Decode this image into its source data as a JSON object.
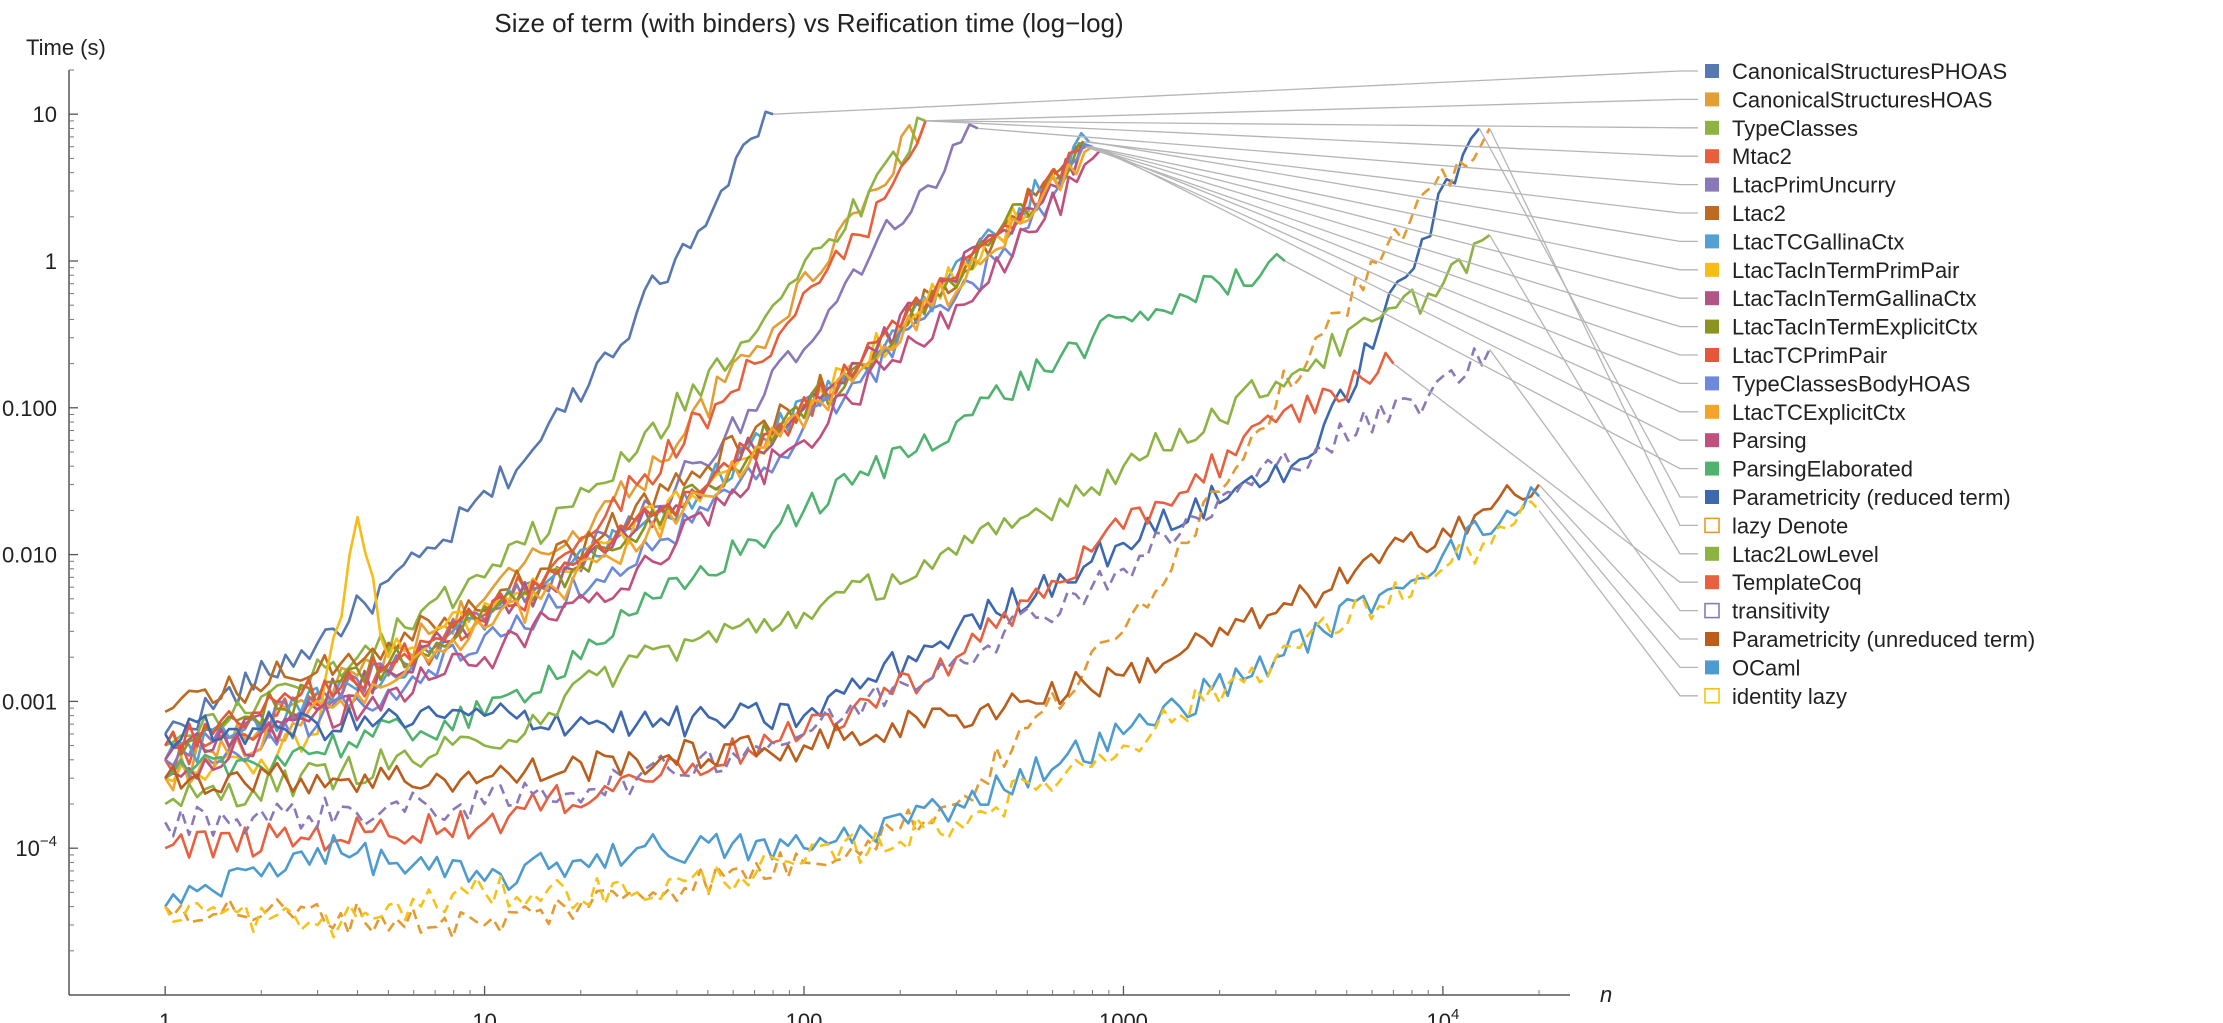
{
  "chart_data": {
    "type": "line",
    "title": "Size of term (with binders) vs Reification time (log−log)",
    "xlabel": "n",
    "ylabel": "Time (s)",
    "xscale": "log",
    "yscale": "log",
    "xlim": [
      0.5,
      25000
    ],
    "ylim": [
      1e-05,
      20
    ],
    "grid": false,
    "legend_position": "right",
    "x_ticks": [
      {
        "value": 1,
        "base": "1",
        "sup": ""
      },
      {
        "value": 10,
        "base": "10",
        "sup": ""
      },
      {
        "value": 100,
        "base": "100",
        "sup": ""
      },
      {
        "value": 1000,
        "base": "1000",
        "sup": ""
      },
      {
        "value": 10000,
        "base": "10",
        "sup": "4"
      }
    ],
    "y_ticks": [
      {
        "value": 0.0001,
        "base": "10",
        "sup": "−4"
      },
      {
        "value": 0.001,
        "base": "0.001",
        "sup": ""
      },
      {
        "value": 0.01,
        "base": "0.010",
        "sup": ""
      },
      {
        "value": 0.1,
        "base": "0.100",
        "sup": ""
      },
      {
        "value": 1,
        "base": "1",
        "sup": ""
      },
      {
        "value": 10,
        "base": "10",
        "sup": ""
      }
    ],
    "series": [
      {
        "name": "CanonicalStructuresPHOAS",
        "color": "#5778b0",
        "dashed": false,
        "marker": "filled",
        "x": [
          1,
          3,
          7,
          15,
          30,
          55,
          80
        ],
        "y": [
          0.0006,
          0.0025,
          0.011,
          0.06,
          0.45,
          3.0,
          10
        ]
      },
      {
        "name": "CanonicalStructuresHOAS",
        "color": "#e29f36",
        "dashed": false,
        "marker": "filled",
        "x": [
          1,
          4,
          10,
          30,
          80,
          160,
          240
        ],
        "y": [
          0.0003,
          0.0015,
          0.005,
          0.03,
          0.35,
          3.0,
          9
        ]
      },
      {
        "name": "TypeClasses",
        "color": "#8db342",
        "dashed": false,
        "marker": "filled",
        "x": [
          1,
          4,
          10,
          30,
          80,
          160,
          240
        ],
        "y": [
          0.0005,
          0.002,
          0.007,
          0.05,
          0.5,
          3.0,
          9
        ]
      },
      {
        "name": "Mtac2",
        "color": "#e95e3b",
        "dashed": false,
        "marker": "filled",
        "x": [
          1,
          5,
          12,
          30,
          70,
          150,
          240
        ],
        "y": [
          0.0004,
          0.0015,
          0.005,
          0.03,
          0.2,
          1.5,
          9
        ]
      },
      {
        "name": "LtacPrimUncurry",
        "color": "#8b78b8",
        "dashed": false,
        "marker": "filled",
        "x": [
          1,
          5,
          15,
          40,
          100,
          230,
          350
        ],
        "y": [
          0.0004,
          0.0016,
          0.006,
          0.03,
          0.25,
          3.0,
          8
        ]
      },
      {
        "name": "Ltac2",
        "color": "#be6a20",
        "dashed": false,
        "marker": "filled",
        "x": [
          1,
          5,
          15,
          50,
          150,
          400,
          750
        ],
        "y": [
          0.00085,
          0.0025,
          0.008,
          0.04,
          0.2,
          1.5,
          6.5
        ]
      },
      {
        "name": "LtacTCGallinaCtx",
        "color": "#53a1d2",
        "dashed": false,
        "marker": "filled",
        "x": [
          1,
          5,
          15,
          50,
          150,
          400,
          780
        ],
        "y": [
          0.0004,
          0.0016,
          0.006,
          0.03,
          0.2,
          1.5,
          6.5
        ]
      },
      {
        "name": "LtacTacInTermPrimPair",
        "color": "#f7bc18",
        "dashed": false,
        "marker": "filled",
        "x": [
          1,
          2,
          3,
          4,
          5,
          15,
          50,
          150,
          400,
          790
        ],
        "y": [
          0.0003,
          0.0004,
          0.0006,
          0.018,
          0.002,
          0.006,
          0.03,
          0.2,
          1.5,
          6
        ]
      },
      {
        "name": "LtacTacInTermGallinaCtx",
        "color": "#b25586",
        "dashed": false,
        "marker": "filled",
        "x": [
          1,
          5,
          15,
          50,
          150,
          400,
          780
        ],
        "y": [
          0.0004,
          0.0016,
          0.006,
          0.03,
          0.2,
          1.5,
          6
        ]
      },
      {
        "name": "LtacTacInTermExplicitCtx",
        "color": "#8b9420",
        "dashed": false,
        "marker": "filled",
        "x": [
          1,
          5,
          15,
          50,
          150,
          400,
          770
        ],
        "y": [
          0.0005,
          0.0018,
          0.006,
          0.03,
          0.2,
          1.5,
          6
        ]
      },
      {
        "name": "LtacTCPrimPair",
        "color": "#e7553a",
        "dashed": false,
        "marker": "filled",
        "x": [
          1,
          5,
          15,
          50,
          150,
          400,
          760
        ],
        "y": [
          0.0005,
          0.0018,
          0.006,
          0.03,
          0.2,
          1.5,
          6
        ]
      },
      {
        "name": "TypeClassesBodyHOAS",
        "color": "#6c89dc",
        "dashed": false,
        "marker": "filled",
        "x": [
          1,
          5,
          15,
          50,
          150,
          400,
          800
        ],
        "y": [
          0.0003,
          0.0012,
          0.004,
          0.02,
          0.15,
          1.0,
          6
        ]
      },
      {
        "name": "LtacTCExplicitCtx",
        "color": "#f3a42c",
        "dashed": false,
        "marker": "filled",
        "x": [
          1,
          5,
          15,
          50,
          150,
          400,
          800
        ],
        "y": [
          0.0003,
          0.0013,
          0.005,
          0.025,
          0.18,
          1.2,
          6
        ]
      },
      {
        "name": "Parsing",
        "color": "#c0507d",
        "dashed": false,
        "marker": "filled",
        "x": [
          1,
          10,
          30,
          100,
          300,
          900
        ],
        "y": [
          0.0003,
          0.002,
          0.008,
          0.06,
          0.5,
          5.5
        ]
      },
      {
        "name": "ParsingElaborated",
        "color": "#50b26f",
        "dashed": false,
        "marker": "filled",
        "x": [
          1,
          10,
          30,
          100,
          300,
          800,
          2000,
          3200
        ],
        "y": [
          0.0003,
          0.0008,
          0.004,
          0.02,
          0.08,
          0.3,
          0.7,
          1.0
        ]
      },
      {
        "name": "Parametricity (reduced term)",
        "color": "#3d68b0",
        "dashed": false,
        "marker": "filled",
        "x": [
          1,
          10,
          30,
          100,
          300,
          1000,
          4000,
          13000
        ],
        "y": [
          0.0006,
          0.0008,
          0.0007,
          0.0008,
          0.003,
          0.012,
          0.05,
          8
        ]
      },
      {
        "name": "lazy Denote",
        "color": "#e49a30",
        "dashed": true,
        "marker": "open",
        "x": [
          1,
          10,
          30,
          100,
          300,
          1000,
          4000,
          14000
        ],
        "y": [
          4e-05,
          3e-05,
          5e-05,
          8e-05,
          0.0002,
          0.003,
          0.3,
          8
        ]
      },
      {
        "name": "Ltac2LowLevel",
        "color": "#8db342",
        "dashed": false,
        "marker": "filled",
        "x": [
          1,
          10,
          30,
          100,
          300,
          1000,
          3000,
          9000,
          14000
        ],
        "y": [
          0.0002,
          0.0005,
          0.002,
          0.004,
          0.01,
          0.04,
          0.15,
          0.6,
          1.5
        ]
      },
      {
        "name": "TemplateCoq",
        "color": "#e96040",
        "dashed": false,
        "marker": "filled",
        "x": [
          1,
          10,
          30,
          100,
          300,
          1000,
          3000,
          7000
        ],
        "y": [
          0.0001,
          0.00015,
          0.0003,
          0.0006,
          0.002,
          0.015,
          0.08,
          0.2
        ]
      },
      {
        "name": "transitivity",
        "color": "#8b78b8",
        "dashed": true,
        "marker": "open",
        "x": [
          1,
          10,
          30,
          100,
          300,
          1000,
          3000,
          9000,
          14000
        ],
        "y": [
          0.00015,
          0.0002,
          0.0003,
          0.0006,
          0.002,
          0.008,
          0.04,
          0.12,
          0.25
        ]
      },
      {
        "name": "Parametricity (unreduced term)",
        "color": "#bb5e1c",
        "dashed": false,
        "marker": "filled",
        "x": [
          1,
          10,
          30,
          100,
          300,
          1000,
          3000,
          10000,
          20000
        ],
        "y": [
          0.0003,
          0.0003,
          0.0004,
          0.0005,
          0.0008,
          0.0015,
          0.004,
          0.015,
          0.03
        ]
      },
      {
        "name": "OCaml",
        "color": "#4e9ccf",
        "dashed": false,
        "marker": "filled",
        "x": [
          1,
          3,
          10,
          30,
          100,
          300,
          1000,
          3000,
          10000,
          20000
        ],
        "y": [
          4e-05,
          0.0001,
          6e-05,
          0.0001,
          0.0001,
          0.0002,
          0.0006,
          0.002,
          0.01,
          0.025
        ]
      },
      {
        "name": "identity lazy",
        "color": "#f6c21a",
        "dashed": true,
        "marker": "open",
        "x": [
          1,
          3,
          10,
          30,
          100,
          300,
          1000,
          3000,
          10000,
          20000
        ],
        "y": [
          4e-05,
          3e-05,
          5e-05,
          5e-05,
          8e-05,
          0.00015,
          0.0005,
          0.002,
          0.008,
          0.02
        ]
      }
    ]
  }
}
